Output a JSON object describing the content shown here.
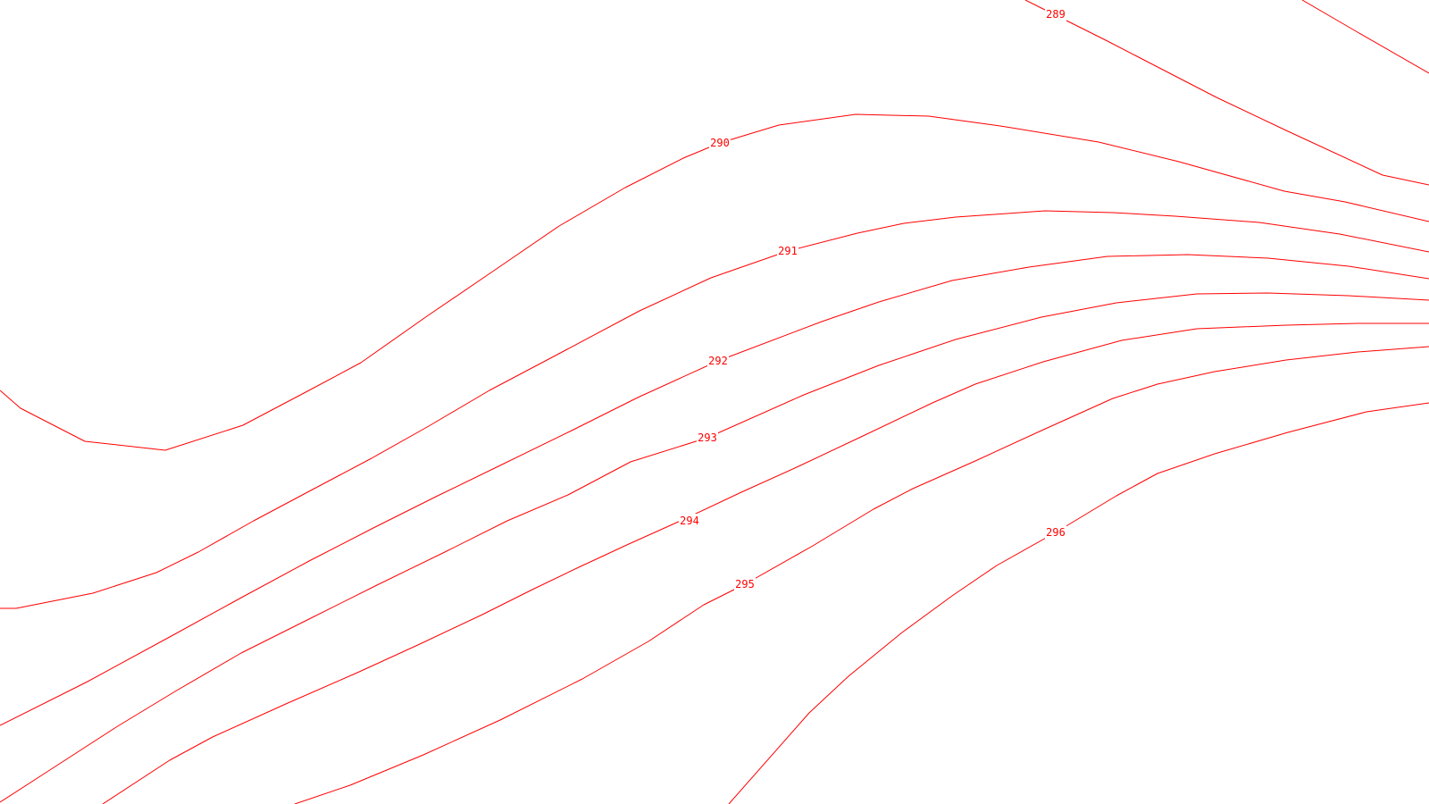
{
  "map": {
    "background": "#ffffff",
    "line_color": "#ff0000",
    "contours": [
      {
        "id": "288",
        "label": ""
      },
      {
        "id": "289",
        "label": "289"
      },
      {
        "id": "290",
        "label": "290"
      },
      {
        "id": "291",
        "label": "291"
      },
      {
        "id": "292",
        "label": "292"
      },
      {
        "id": "293",
        "label": "293"
      },
      {
        "id": "294",
        "label": "294"
      },
      {
        "id": "295",
        "label": "295"
      },
      {
        "id": "296",
        "label": "296"
      }
    ]
  }
}
